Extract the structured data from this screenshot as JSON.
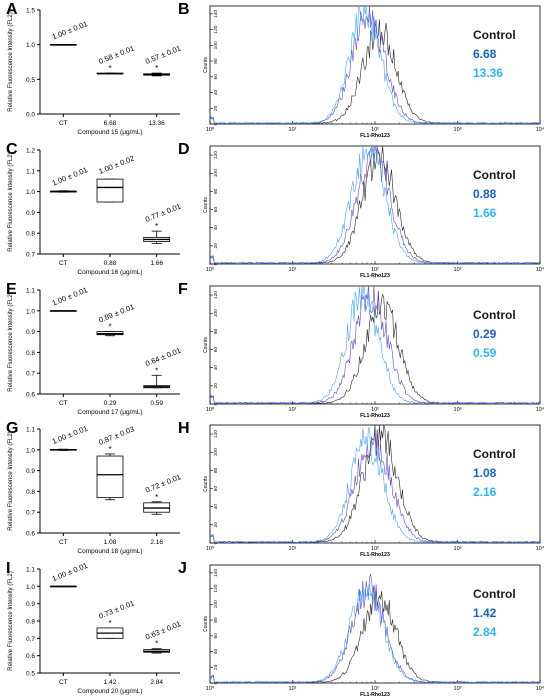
{
  "colors": {
    "control": "#1a1a1a",
    "dose1": "#1565c0",
    "dose2": "#29b6f6",
    "dose1_curve": "#5a3fd0",
    "dose2_curve": "#3aa0ff",
    "axis": "#000000"
  },
  "panels": [
    {
      "row": 0,
      "box": {
        "label": "A",
        "type": "box",
        "ylabel": "Relative Fluorescence Intensity (FL2)",
        "xlabel": "Compound 15 (μg/mL)",
        "categories": [
          "CT",
          "6.68",
          "13.36"
        ],
        "yticks": [
          "0.0",
          "0.5",
          "1.0",
          "1.5"
        ],
        "ylim": [
          0,
          1.5
        ],
        "groups": [
          {
            "category": "CT",
            "median": 1.0,
            "q1": 1.0,
            "q3": 1.0,
            "min": 1.0,
            "max": 1.0,
            "label": "1.00 ± 0.01",
            "star": ""
          },
          {
            "category": "6.68",
            "median": 0.58,
            "q1": 0.58,
            "q3": 0.59,
            "min": 0.58,
            "max": 0.59,
            "label": "0.58 ± 0.01",
            "star": "*"
          },
          {
            "category": "13.36",
            "median": 0.57,
            "q1": 0.56,
            "q3": 0.58,
            "min": 0.55,
            "max": 0.59,
            "label": "0.57 ± 0.01",
            "star": "*"
          }
        ]
      },
      "hist": {
        "label": "B",
        "type": "histogram",
        "ylabel": "Counts",
        "xlabel": "FL1-Rho123",
        "yticks": [
          "0",
          "20",
          "40",
          "60",
          "80",
          "100",
          "120",
          "140"
        ],
        "ylim": [
          0,
          150
        ],
        "xticks": [
          "10⁰",
          "10¹",
          "10²",
          "10³",
          "10⁴"
        ],
        "legend": [
          "Control",
          "6.68",
          "13.36"
        ],
        "series": [
          {
            "name": "Control",
            "center": 2.05,
            "sd": 0.2,
            "peak": 118
          },
          {
            "name": "6.68",
            "center": 1.92,
            "sd": 0.2,
            "peak": 135
          },
          {
            "name": "13.36",
            "center": 1.88,
            "sd": 0.19,
            "peak": 140
          }
        ]
      }
    },
    {
      "row": 1,
      "box": {
        "label": "C",
        "type": "box",
        "ylabel": "Relative Fluorescence Intensity (FL2)",
        "xlabel": "Compound 16 (μg/mL)",
        "categories": [
          "CT",
          "0.88",
          "1.66"
        ],
        "yticks": [
          "0.7",
          "0.8",
          "0.9",
          "1.0",
          "1.1",
          "1.2"
        ],
        "ylim": [
          0.7,
          1.2
        ],
        "groups": [
          {
            "category": "CT",
            "median": 1.0,
            "q1": 0.998,
            "q3": 1.003,
            "min": 0.997,
            "max": 1.004,
            "label": "1.00 ± 0.01",
            "star": ""
          },
          {
            "category": "0.88",
            "median": 1.02,
            "q1": 0.95,
            "q3": 1.06,
            "min": 0.95,
            "max": 1.06,
            "label": "1.00 ± 0.02",
            "star": ""
          },
          {
            "category": "1.66",
            "median": 0.77,
            "q1": 0.76,
            "q3": 0.78,
            "min": 0.75,
            "max": 0.81,
            "label": "0.77 ± 0.01",
            "star": "*"
          }
        ]
      },
      "hist": {
        "label": "D",
        "type": "histogram",
        "ylabel": "Counts",
        "xlabel": "FL1-Rho123",
        "yticks": [
          "0",
          "20",
          "40",
          "60",
          "80",
          "100",
          "120"
        ],
        "ylim": [
          0,
          130
        ],
        "xticks": [
          "10⁰",
          "10¹",
          "10²",
          "10³",
          "10⁴"
        ],
        "legend": [
          "Control",
          "0.88",
          "1.66"
        ],
        "series": [
          {
            "name": "Control",
            "center": 2.05,
            "sd": 0.2,
            "peak": 118
          },
          {
            "name": "0.88",
            "center": 1.98,
            "sd": 0.2,
            "peak": 122
          },
          {
            "name": "1.66",
            "center": 1.92,
            "sd": 0.2,
            "peak": 125
          }
        ]
      }
    },
    {
      "row": 2,
      "box": {
        "label": "E",
        "type": "box",
        "ylabel": "Relative Fluorescence Intensity (FL2)",
        "xlabel": "Compound 17 (μg/mL)",
        "categories": [
          "CT",
          "0.29",
          "0.59"
        ],
        "yticks": [
          "0.6",
          "0.7",
          "0.8",
          "0.9",
          "1.0",
          "1.1"
        ],
        "ylim": [
          0.6,
          1.1
        ],
        "groups": [
          {
            "category": "CT",
            "median": 1.0,
            "q1": 1.0,
            "q3": 1.0,
            "min": 1.0,
            "max": 1.0,
            "label": "1.00 ± 0.01",
            "star": ""
          },
          {
            "category": "0.29",
            "median": 0.89,
            "q1": 0.885,
            "q3": 0.9,
            "min": 0.88,
            "max": 0.9,
            "label": "0.89 ± 0.01",
            "star": "*"
          },
          {
            "category": "0.59",
            "median": 0.635,
            "q1": 0.63,
            "q3": 0.64,
            "min": 0.63,
            "max": 0.69,
            "label": "0.64 ± 0.01",
            "star": "*"
          }
        ]
      },
      "hist": {
        "label": "F",
        "type": "histogram",
        "ylabel": "Counts",
        "xlabel": "FL1-Rho123",
        "yticks": [
          "0",
          "20",
          "40",
          "60",
          "80",
          "100",
          "120"
        ],
        "ylim": [
          0,
          130
        ],
        "xticks": [
          "10⁰",
          "10¹",
          "10²",
          "10³",
          "10⁴"
        ],
        "legend": [
          "Control",
          "0.29",
          "0.59"
        ],
        "series": [
          {
            "name": "Control",
            "center": 2.08,
            "sd": 0.2,
            "peak": 112
          },
          {
            "name": "0.29",
            "center": 1.95,
            "sd": 0.2,
            "peak": 118
          },
          {
            "name": "0.59",
            "center": 1.85,
            "sd": 0.19,
            "peak": 122
          }
        ]
      }
    },
    {
      "row": 3,
      "box": {
        "label": "G",
        "type": "box",
        "ylabel": "Relative Fluorescence Intensity (FL2)",
        "xlabel": "Compound 18 (μg/mL)",
        "categories": [
          "CT",
          "1.08",
          "2.16"
        ],
        "yticks": [
          "0.6",
          "0.7",
          "0.8",
          "0.9",
          "1.0",
          "1.1"
        ],
        "ylim": [
          0.6,
          1.1
        ],
        "groups": [
          {
            "category": "CT",
            "median": 1.0,
            "q1": 0.998,
            "q3": 1.002,
            "min": 0.997,
            "max": 1.003,
            "label": "1.00 ± 0.01",
            "star": ""
          },
          {
            "category": "1.08",
            "median": 0.88,
            "q1": 0.77,
            "q3": 0.97,
            "min": 0.76,
            "max": 0.98,
            "label": "0.87 ± 0.03",
            "star": "*"
          },
          {
            "category": "2.16",
            "median": 0.72,
            "q1": 0.7,
            "q3": 0.745,
            "min": 0.69,
            "max": 0.75,
            "label": "0.72 ± 0.01",
            "star": "*"
          }
        ]
      },
      "hist": {
        "label": "H",
        "type": "histogram",
        "ylabel": "Counts",
        "xlabel": "FL1-Rho123",
        "yticks": [
          "0",
          "20",
          "40",
          "60",
          "80",
          "100",
          "120"
        ],
        "ylim": [
          0,
          130
        ],
        "xticks": [
          "10⁰",
          "10¹",
          "10²",
          "10³",
          "10⁴"
        ],
        "legend": [
          "Control",
          "1.08",
          "2.16"
        ],
        "series": [
          {
            "name": "Control",
            "center": 2.06,
            "sd": 0.21,
            "peak": 118
          },
          {
            "name": "1.08",
            "center": 1.98,
            "sd": 0.21,
            "peak": 115
          },
          {
            "name": "2.16",
            "center": 1.9,
            "sd": 0.2,
            "peak": 110
          }
        ]
      }
    },
    {
      "row": 4,
      "box": {
        "label": "I",
        "type": "box",
        "ylabel": "Relative Fluorescence Intensity (FL2)",
        "xlabel": "Compound 20 (μg/mL)",
        "categories": [
          "CT",
          "1.42",
          "2.84"
        ],
        "yticks": [
          "0.5",
          "0.6",
          "0.7",
          "0.8",
          "0.9",
          "1.0",
          "1.1"
        ],
        "ylim": [
          0.5,
          1.1
        ],
        "groups": [
          {
            "category": "CT",
            "median": 1.0,
            "q1": 1.0,
            "q3": 1.0,
            "min": 1.0,
            "max": 1.0,
            "label": "1.00 ± 0.01",
            "star": ""
          },
          {
            "category": "1.42",
            "median": 0.73,
            "q1": 0.7,
            "q3": 0.76,
            "min": 0.7,
            "max": 0.76,
            "label": "0.73 ± 0.01",
            "star": "*"
          },
          {
            "category": "2.84",
            "median": 0.625,
            "q1": 0.62,
            "q3": 0.635,
            "min": 0.615,
            "max": 0.64,
            "label": "0.63 ± 0.01",
            "star": "*"
          }
        ]
      },
      "hist": {
        "label": "J",
        "type": "histogram",
        "ylabel": "Counts",
        "xlabel": "FL1-Rho123",
        "yticks": [
          "0",
          "20",
          "40",
          "60",
          "80",
          "100",
          "120",
          "140"
        ],
        "ylim": [
          0,
          150
        ],
        "xticks": [
          "10⁰",
          "10¹",
          "10²",
          "10³",
          "10⁴"
        ],
        "legend": [
          "Control",
          "1.42",
          "2.84"
        ],
        "series": [
          {
            "name": "Control",
            "center": 2.05,
            "sd": 0.2,
            "peak": 110
          },
          {
            "name": "1.42",
            "center": 1.92,
            "sd": 0.2,
            "peak": 118
          },
          {
            "name": "2.84",
            "center": 1.9,
            "sd": 0.2,
            "peak": 120
          }
        ]
      }
    }
  ]
}
